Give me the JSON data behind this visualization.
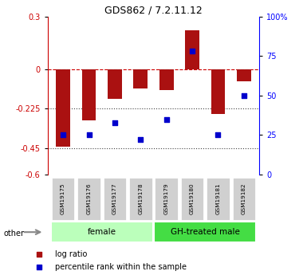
{
  "title": "GDS862 / 7.2.11.12",
  "samples": [
    "GSM19175",
    "GSM19176",
    "GSM19177",
    "GSM19178",
    "GSM19179",
    "GSM19180",
    "GSM19181",
    "GSM19182"
  ],
  "log_ratios": [
    -0.44,
    -0.29,
    -0.17,
    -0.11,
    -0.12,
    0.22,
    -0.255,
    -0.07
  ],
  "percentile_ranks": [
    25,
    25,
    33,
    22,
    35,
    78,
    25,
    50
  ],
  "groups": [
    {
      "label": "female",
      "color": "#bbffbb",
      "samples": [
        0,
        1,
        2,
        3
      ]
    },
    {
      "label": "GH-treated male",
      "color": "#44dd44",
      "samples": [
        4,
        5,
        6,
        7
      ]
    }
  ],
  "ylim_left": [
    -0.6,
    0.3
  ],
  "ylim_right": [
    0,
    100
  ],
  "yticks_left": [
    0.3,
    0,
    -0.225,
    -0.45,
    -0.6
  ],
  "yticks_right": [
    100,
    75,
    50,
    25,
    0
  ],
  "hlines": [
    0,
    -0.225,
    -0.45
  ],
  "hline_styles": [
    "dashed",
    "dotted",
    "dotted"
  ],
  "hline_colors": [
    "#cc0000",
    "#444444",
    "#444444"
  ],
  "bar_color": "#aa1111",
  "dot_color": "#0000cc",
  "bar_width": 0.55,
  "legend_items": [
    {
      "label": "log ratio",
      "color": "#aa1111"
    },
    {
      "label": "percentile rank within the sample",
      "color": "#0000cc"
    }
  ],
  "other_label": "other",
  "background_color": "#ffffff"
}
